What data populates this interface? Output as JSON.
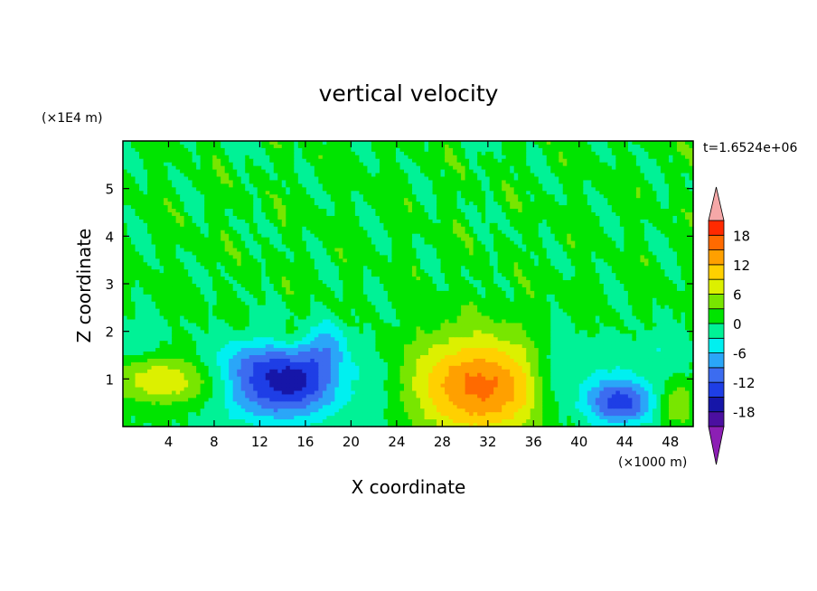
{
  "chart_data": {
    "type": "heatmap",
    "title": "vertical velocity",
    "xlabel": "X coordinate",
    "ylabel": "Z coordinate",
    "x_unit": "(×1000 m)",
    "y_unit": "(×1E4 m)",
    "time_label": "t=1.6524e+06",
    "xlim": [
      0,
      50
    ],
    "ylim": [
      0,
      6
    ],
    "x_ticks": [
      "4",
      "8",
      "12",
      "16",
      "20",
      "24",
      "28",
      "32",
      "36",
      "40",
      "44",
      "48"
    ],
    "y_ticks": [
      "1",
      "2",
      "3",
      "4",
      "5"
    ],
    "colorbar": {
      "labels": [
        "18",
        "12",
        "6",
        "0",
        "-6",
        "-12",
        "-18"
      ],
      "levels": [
        -21,
        -18,
        -15,
        -12,
        -9,
        -6,
        -3,
        0,
        3,
        6,
        9,
        12,
        15,
        18,
        21
      ],
      "colors": [
        "#8c1fb4",
        "#4b0fa0",
        "#1616a8",
        "#1e3ee6",
        "#3c6cf0",
        "#2aa6f8",
        "#00f0f0",
        "#00f296",
        "#00e400",
        "#78e600",
        "#dcf000",
        "#ffd000",
        "#ffa000",
        "#ff6a00",
        "#ff2a00",
        "#f5a8a8"
      ]
    },
    "features": [
      {
        "x": 13.5,
        "z": 0.8,
        "w_min": -15,
        "desc": "downdraft"
      },
      {
        "x": 31.5,
        "z": 0.75,
        "w_max": 13,
        "desc": "updraft"
      },
      {
        "x": 43.5,
        "z": 0.5,
        "w_min": -12,
        "desc": "downdraft"
      },
      {
        "x": 3.0,
        "z": 1.0,
        "w_max": 7,
        "desc": "updraft"
      },
      {
        "x": 48.5,
        "z": 0.45,
        "w_max": 6,
        "desc": "updraft"
      }
    ],
    "grid": false
  }
}
